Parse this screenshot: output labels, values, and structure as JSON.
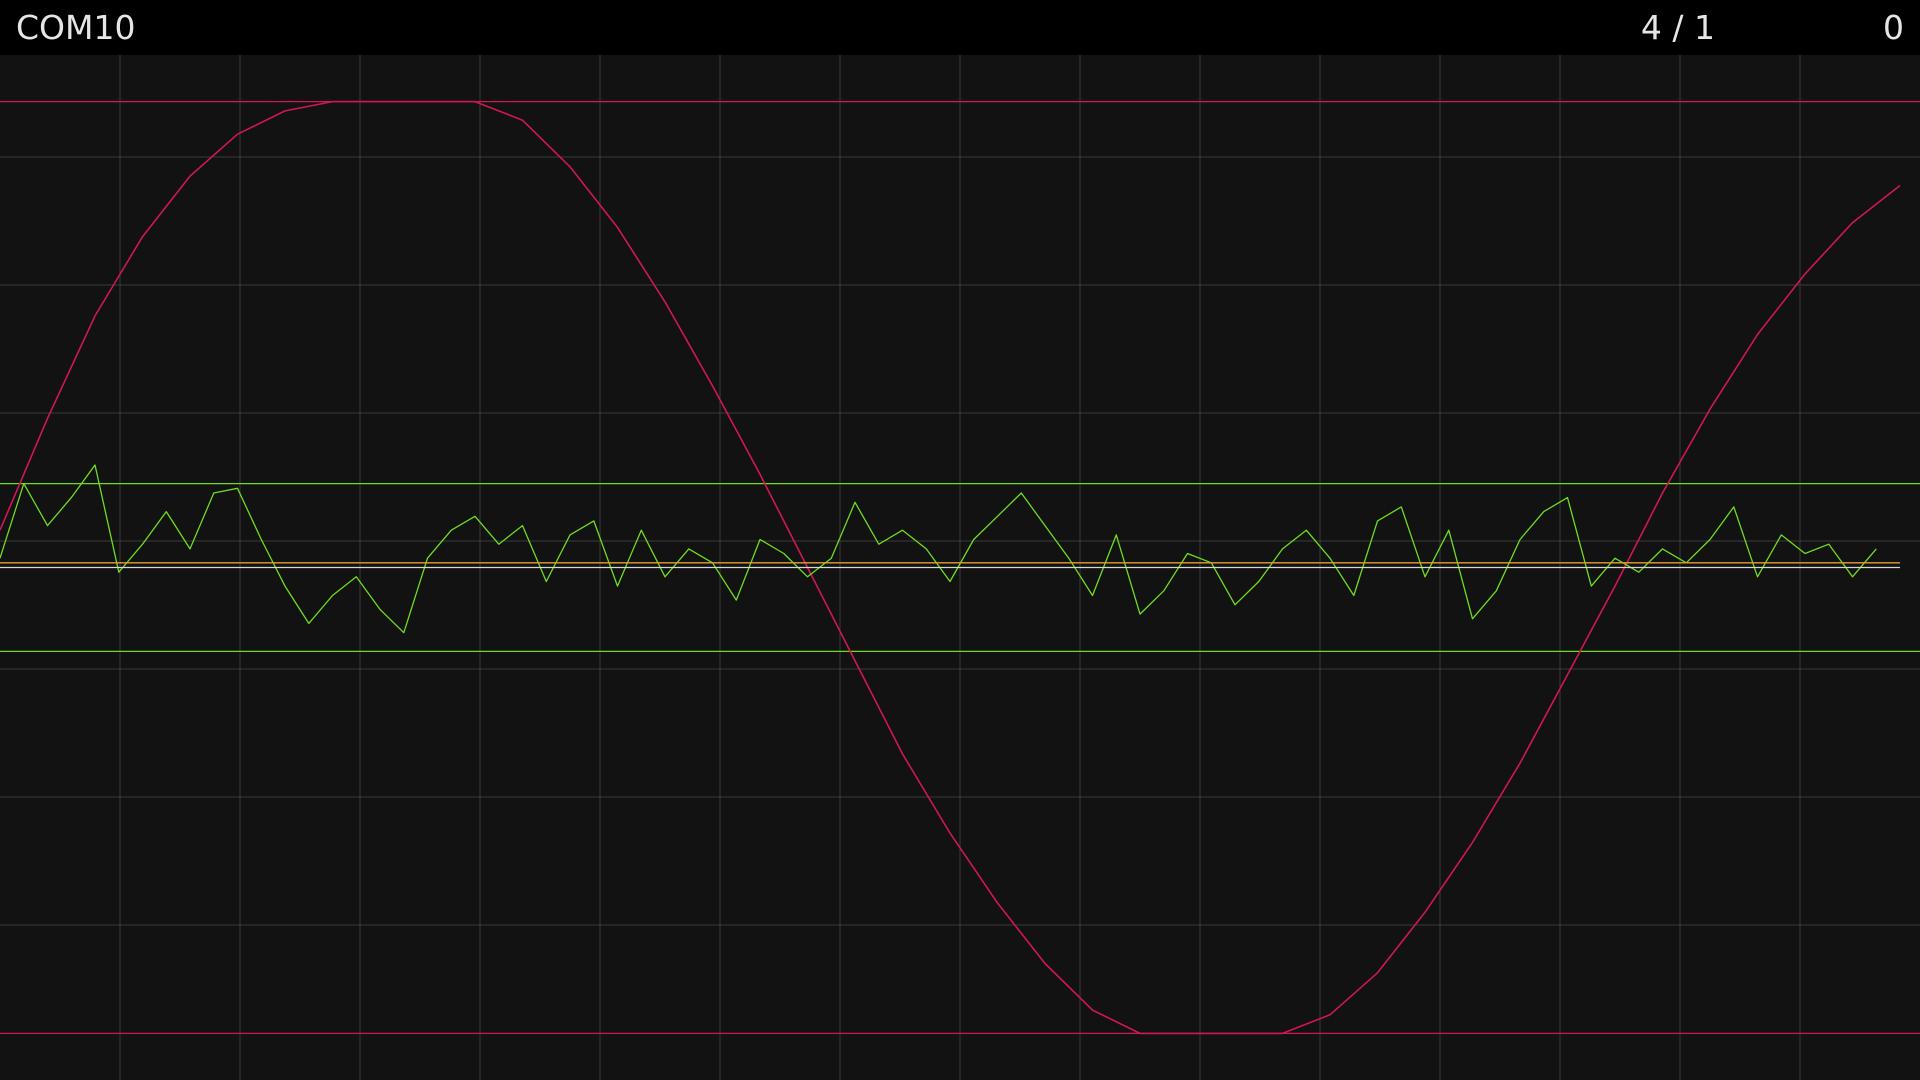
{
  "header": {
    "port": "COM10",
    "ratio": "4 / 1",
    "count": "0"
  },
  "colors": {
    "background": "#121212",
    "topbar": "#000000",
    "text": "#e6e6e6",
    "grid": "#3a3a3a",
    "sine": "#d01850",
    "noise": "#6fdc1e",
    "center_orange": "#e0a030",
    "center_white": "#d8d8d8"
  },
  "plot": {
    "grid": true,
    "vertical_grid_lines": 16,
    "horizontal_grid_lines": 8
  },
  "chart_data": {
    "type": "line",
    "title": "",
    "xlabel": "",
    "ylabel": "",
    "ylim": [
      -1.1,
      1.1
    ],
    "series": [
      {
        "name": "",
        "color": "#d01850",
        "x": [
          0,
          40,
          80,
          120,
          160,
          200,
          240,
          280,
          320,
          360,
          400,
          440,
          480,
          520,
          560,
          600,
          640,
          680,
          720,
          760,
          800,
          840,
          880,
          920,
          960,
          1000,
          1040,
          1080,
          1120,
          1160,
          1200,
          1240,
          1280,
          1320,
          1360,
          1400,
          1440,
          1480,
          1520,
          1560,
          1600
        ],
        "values": [
          0.08,
          0.32,
          0.54,
          0.71,
          0.84,
          0.93,
          0.98,
          1.0,
          1.0,
          1.0,
          1.0,
          0.96,
          0.86,
          0.73,
          0.57,
          0.39,
          0.2,
          0.0,
          -0.2,
          -0.4,
          -0.57,
          -0.72,
          -0.85,
          -0.95,
          -1.0,
          -1.0,
          -1.0,
          -1.0,
          -0.96,
          -0.87,
          -0.74,
          -0.59,
          -0.42,
          -0.23,
          -0.04,
          0.16,
          0.34,
          0.5,
          0.63,
          0.74,
          0.82
        ]
      },
      {
        "name": "",
        "color": "#6fdc1e",
        "x": [
          0,
          20,
          40,
          60,
          80,
          100,
          120,
          140,
          160,
          180,
          200,
          220,
          240,
          260,
          280,
          300,
          320,
          340,
          360,
          380,
          400,
          420,
          440,
          460,
          480,
          500,
          520,
          540,
          560,
          580,
          600,
          620,
          640,
          660,
          680,
          700,
          720,
          740,
          760,
          780,
          800,
          820,
          840,
          860,
          880,
          900,
          920,
          940,
          960,
          980,
          1000,
          1020,
          1040,
          1060,
          1080,
          1100,
          1120,
          1140,
          1160,
          1180,
          1200,
          1220,
          1240,
          1260,
          1280,
          1300,
          1320,
          1340,
          1360,
          1380,
          1400,
          1420,
          1440,
          1460,
          1480,
          1500,
          1520,
          1540,
          1560,
          1580
        ],
        "values": [
          0.02,
          0.18,
          0.09,
          0.15,
          0.22,
          -0.01,
          0.05,
          0.12,
          0.04,
          0.16,
          0.17,
          0.06,
          -0.04,
          -0.12,
          -0.06,
          -0.02,
          -0.09,
          -0.14,
          0.02,
          0.08,
          0.11,
          0.05,
          0.09,
          -0.03,
          0.07,
          0.1,
          -0.04,
          0.08,
          -0.02,
          0.04,
          0.01,
          -0.07,
          0.06,
          0.03,
          -0.02,
          0.02,
          0.14,
          0.05,
          0.08,
          0.04,
          -0.03,
          0.06,
          0.11,
          0.16,
          0.09,
          0.02,
          -0.06,
          0.07,
          -0.1,
          -0.05,
          0.03,
          0.01,
          -0.08,
          -0.03,
          0.04,
          0.08,
          0.02,
          -0.06,
          0.1,
          0.13,
          -0.02,
          0.08,
          -0.11,
          -0.05,
          0.06,
          0.12,
          0.15,
          -0.04,
          0.02,
          -0.01,
          0.04,
          0.01,
          0.06,
          0.13,
          -0.02,
          0.07,
          0.03,
          0.05,
          -0.02,
          0.04
        ]
      },
      {
        "name": "",
        "color": "#e0a030",
        "x": [
          0,
          1600
        ],
        "values": [
          0.01,
          0.01
        ]
      },
      {
        "name": "",
        "color": "#d8d8d8",
        "x": [
          0,
          1600
        ],
        "values": [
          0.0,
          0.0
        ]
      }
    ],
    "reference_lines": [
      {
        "color": "#d01850",
        "value": 1.0
      },
      {
        "color": "#d01850",
        "value": -1.0
      },
      {
        "color": "#6fdc1e",
        "value": 0.18
      },
      {
        "color": "#6fdc1e",
        "value": -0.18
      }
    ]
  }
}
